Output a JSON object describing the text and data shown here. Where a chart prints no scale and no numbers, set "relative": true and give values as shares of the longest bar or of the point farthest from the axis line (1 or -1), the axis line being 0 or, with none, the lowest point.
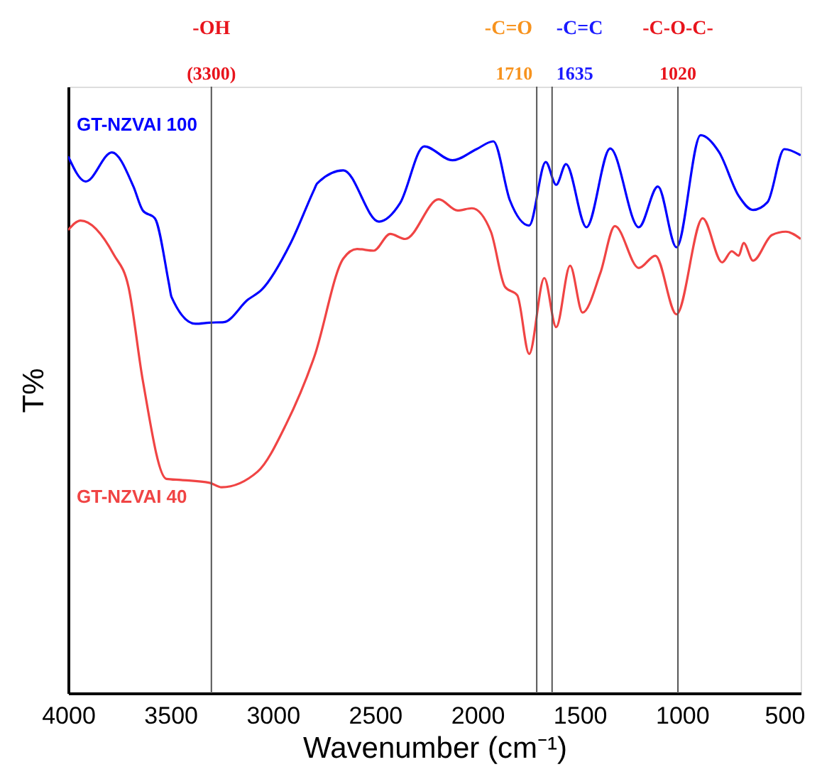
{
  "chart_data": {
    "type": "line",
    "relative": true,
    "xlabel": "Wavenumber (cm⁻¹)",
    "ylabel": "T%",
    "xlim": [
      4000,
      420
    ],
    "xticks": [
      4000,
      3500,
      3000,
      2500,
      2000,
      1500,
      1000,
      500
    ],
    "grid": false,
    "legend": false,
    "tick_labels": "x",
    "marker": "none",
    "line_style": "solid",
    "series": [
      {
        "name": "GT-NZVAI 100",
        "color": "#0000ff",
        "x": [
          4000,
          3914,
          3786,
          3681,
          3635,
          3576,
          3507,
          3495,
          3378,
          3309,
          3239,
          3122,
          3054,
          2912,
          2797,
          2784,
          2655,
          2481,
          2378,
          2260,
          2122,
          2004,
          1922,
          1841,
          1747,
          1666,
          1615,
          1567,
          1467,
          1351,
          1211,
          1118,
          1027,
          909,
          818,
          723,
          653,
          582,
          500,
          420
        ],
        "values": [
          0.962,
          0.917,
          0.969,
          0.908,
          0.865,
          0.851,
          0.733,
          0.71,
          0.662,
          0.664,
          0.665,
          0.705,
          0.723,
          0.807,
          0.903,
          0.913,
          0.937,
          0.845,
          0.878,
          0.98,
          0.955,
          0.975,
          0.989,
          0.883,
          0.838,
          0.952,
          0.911,
          0.948,
          0.835,
          0.976,
          0.835,
          0.908,
          0.799,
          1.0,
          0.969,
          0.891,
          0.866,
          0.88,
          0.975,
          0.964
        ]
      },
      {
        "name": "GT-NZVAI 40",
        "color": "#f04444",
        "x": [
          4000,
          3939,
          3777,
          3705,
          3635,
          3520,
          3448,
          3309,
          3250,
          3074,
          2936,
          2797,
          2655,
          2588,
          2507,
          2426,
          2353,
          2189,
          2097,
          2027,
          1934,
          1865,
          1805,
          1747,
          1673,
          1615,
          1547,
          1486,
          1399,
          1328,
          1211,
          1130,
          1027,
          899,
          804,
          757,
          723,
          699,
          653,
          561,
          493,
          420
        ],
        "values": [
          0.83,
          0.847,
          0.786,
          0.728,
          0.56,
          0.384,
          0.382,
          0.377,
          0.369,
          0.397,
          0.481,
          0.603,
          0.779,
          0.796,
          0.793,
          0.823,
          0.814,
          0.885,
          0.865,
          0.869,
          0.827,
          0.728,
          0.713,
          0.608,
          0.744,
          0.656,
          0.766,
          0.682,
          0.753,
          0.837,
          0.762,
          0.784,
          0.679,
          0.851,
          0.772,
          0.792,
          0.784,
          0.807,
          0.775,
          0.821,
          0.827,
          0.814
        ]
      }
    ],
    "ref_lines": [
      {
        "axis": "x",
        "value": 3300,
        "label": "-OH",
        "color": "#555555"
      },
      {
        "axis": "x",
        "value": 1710,
        "label": "-C=O",
        "color": "#555555"
      },
      {
        "axis": "x",
        "value": 1635,
        "label": "-C=C",
        "color": "#555555"
      },
      {
        "axis": "x",
        "value": 1020,
        "label": "-C-O-C-",
        "color": "#555555"
      }
    ],
    "annotations": [
      "(3300)",
      "1710",
      "1635",
      "1020"
    ]
  }
}
